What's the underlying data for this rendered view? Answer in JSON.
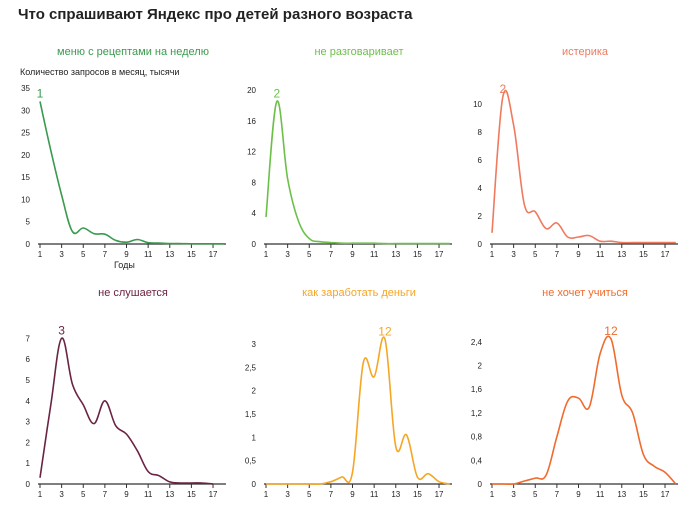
{
  "title": "Что спрашивают Яндекс про детей разного возраста",
  "ylabel": "Количество запросов в месяц, тысячи",
  "xlabel": "Годы",
  "chart_data": [
    {
      "type": "line",
      "title": "меню с рецептами на неделю",
      "color": "#3a9a4e",
      "peak_label": "1",
      "x": [
        1,
        2,
        3,
        4,
        5,
        6,
        7,
        8,
        9,
        10,
        11,
        12,
        13,
        14,
        15,
        16,
        17,
        18
      ],
      "values": [
        32,
        21,
        11,
        2.8,
        3.6,
        2.3,
        2.2,
        0.8,
        0.4,
        1.0,
        0.3,
        0.2,
        0.1,
        0.1,
        0.05,
        0.05,
        0.05,
        0.05
      ],
      "yticks": [
        0,
        5,
        10,
        15,
        20,
        25,
        30,
        35
      ],
      "ylim": [
        0,
        35
      ],
      "xticks": [
        1,
        3,
        5,
        7,
        9,
        11,
        13,
        15,
        17
      ]
    },
    {
      "type": "line",
      "title": "не разговаривает",
      "color": "#6cc04a",
      "peak_label": "2",
      "x": [
        1,
        2,
        3,
        4,
        5,
        6,
        7,
        8,
        9,
        10,
        11,
        12,
        13,
        14,
        15,
        16,
        17,
        18
      ],
      "values": [
        3.5,
        18.5,
        8.5,
        3,
        0.7,
        0.3,
        0.2,
        0.1,
        0.1,
        0.1,
        0.1,
        0.05,
        0.05,
        0.05,
        0.05,
        0.05,
        0.05,
        0.05
      ],
      "yticks": [
        0,
        4,
        8,
        12,
        16,
        20
      ],
      "ylim": [
        0,
        20
      ],
      "xticks": [
        1,
        3,
        5,
        7,
        9,
        11,
        13,
        15,
        17
      ]
    },
    {
      "type": "line",
      "title": "истерика",
      "color": "#ef7a5e",
      "peak_label": "2",
      "x": [
        1,
        2,
        3,
        4,
        5,
        6,
        7,
        8,
        9,
        10,
        11,
        12,
        13,
        14,
        15,
        16,
        17,
        18
      ],
      "values": [
        0.8,
        10.5,
        8.5,
        2.8,
        2.3,
        1.1,
        1.5,
        0.5,
        0.5,
        0.6,
        0.2,
        0.2,
        0.1,
        0.1,
        0.1,
        0.1,
        0.1,
        0.1
      ],
      "yticks": [
        0,
        2,
        4,
        6,
        8,
        10
      ],
      "ylim": [
        0,
        11
      ],
      "xticks": [
        1,
        3,
        5,
        7,
        9,
        11,
        13,
        15,
        17
      ]
    },
    {
      "type": "line",
      "title": "не слушается",
      "color": "#6b2344",
      "peak_label": "3",
      "x": [
        1,
        2,
        3,
        4,
        5,
        6,
        7,
        8,
        9,
        10,
        11,
        12,
        13,
        14,
        15,
        16,
        17
      ],
      "values": [
        0.3,
        3.8,
        7.0,
        4.8,
        3.8,
        2.9,
        4.0,
        2.8,
        2.4,
        1.6,
        0.6,
        0.4,
        0.1,
        0.05,
        0.05,
        0.05,
        0.0
      ],
      "yticks": [
        0,
        1,
        2,
        3,
        4,
        5,
        6,
        7
      ],
      "ylim": [
        0,
        7.4
      ],
      "xticks": [
        1,
        3,
        5,
        7,
        9,
        11,
        13,
        15,
        17
      ]
    },
    {
      "type": "line",
      "title": "как заработать деньги",
      "color": "#f5a623",
      "peak_label": "12",
      "x": [
        1,
        2,
        3,
        4,
        5,
        6,
        7,
        8,
        9,
        10,
        11,
        12,
        13,
        14,
        15,
        16,
        17,
        18
      ],
      "values": [
        0,
        0,
        0,
        0,
        0,
        0,
        0.05,
        0.15,
        0.25,
        2.6,
        2.3,
        3.1,
        0.8,
        1.05,
        0.15,
        0.22,
        0.05,
        0.0
      ],
      "yticks": [
        0,
        0.5,
        1,
        1.5,
        2,
        2.5,
        3
      ],
      "ylim": [
        0,
        3.3
      ],
      "xticks": [
        1,
        3,
        5,
        7,
        9,
        11,
        13,
        15,
        17
      ]
    },
    {
      "type": "line",
      "title": "не хочет учиться",
      "color": "#f06b2e",
      "peak_label": "12",
      "x": [
        1,
        2,
        3,
        4,
        5,
        6,
        7,
        8,
        9,
        10,
        11,
        12,
        13,
        14,
        15,
        16,
        17,
        18
      ],
      "values": [
        0,
        0,
        0,
        0.05,
        0.1,
        0.15,
        0.8,
        1.4,
        1.45,
        1.3,
        2.2,
        2.45,
        1.5,
        1.2,
        0.5,
        0.3,
        0.2,
        0.0
      ],
      "yticks": [
        0,
        0.4,
        0.8,
        1.2,
        1.6,
        2,
        2.4
      ],
      "ylim": [
        0,
        2.6
      ],
      "xticks": [
        1,
        3,
        5,
        7,
        9,
        11,
        13,
        15,
        17
      ]
    }
  ]
}
